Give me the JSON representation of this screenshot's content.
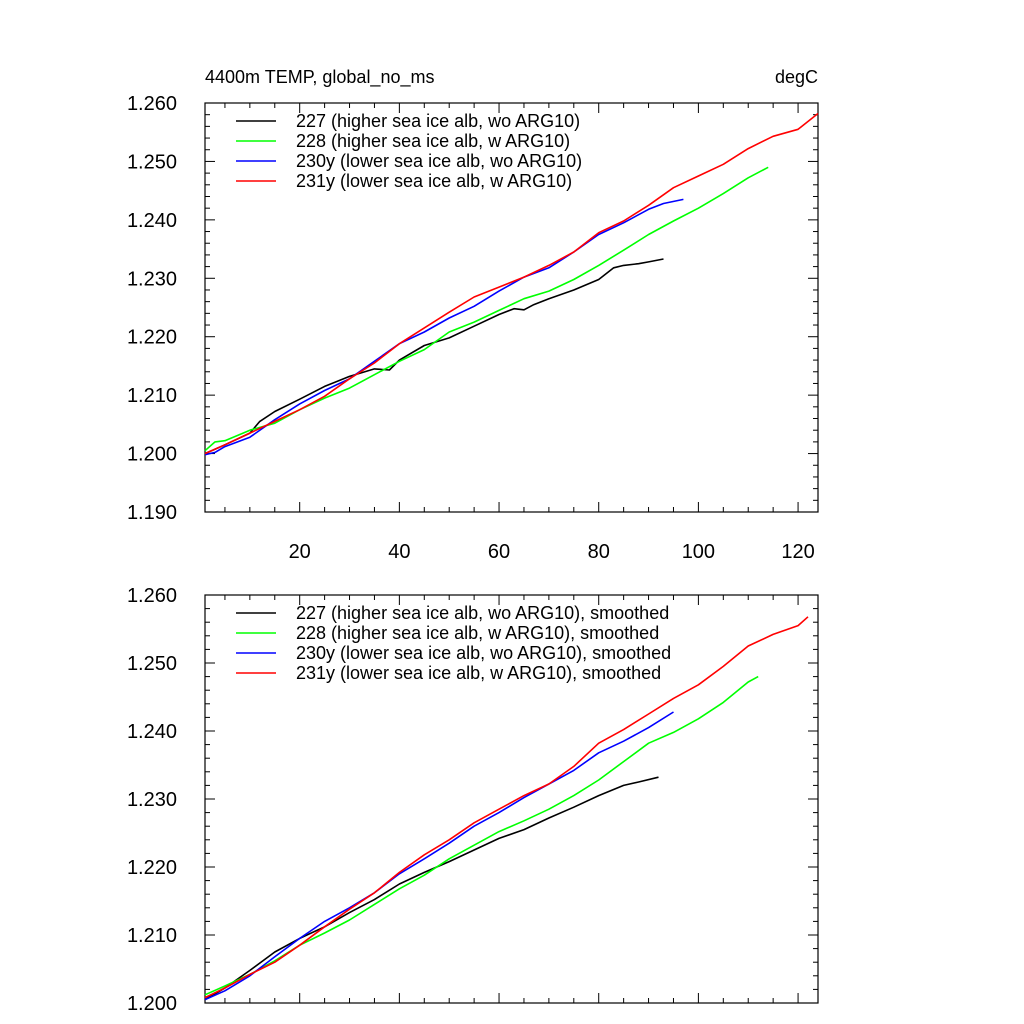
{
  "chart_data": [
    {
      "type": "line",
      "title_left": "4400m TEMP, global_no_ms",
      "title_right": "degC",
      "xlabel": "",
      "ylabel": "",
      "xlim": [
        1,
        124
      ],
      "ylim": [
        1.19,
        1.26
      ],
      "xticks": [
        20,
        40,
        60,
        80,
        100,
        120
      ],
      "yticks": [
        1.19,
        1.2,
        1.21,
        1.22,
        1.23,
        1.24,
        1.25,
        1.26
      ],
      "ytick_labels": [
        "1.190",
        "1.200",
        "1.210",
        "1.220",
        "1.230",
        "1.240",
        "1.250",
        "1.260"
      ],
      "xtick_labels": [
        "20",
        "40",
        "60",
        "80",
        "100",
        "120"
      ],
      "legend_position": "top-left",
      "grid": false,
      "series": [
        {
          "name": "227 (higher sea ice alb, wo ARG10)",
          "color": "#000000",
          "x": [
            1,
            5,
            10,
            12,
            15,
            20,
            25,
            30,
            35,
            38,
            40,
            45,
            50,
            55,
            60,
            63,
            65,
            67,
            70,
            75,
            80,
            83,
            85,
            88,
            90,
            93
          ],
          "y": [
            1.2,
            1.2015,
            1.2035,
            1.2055,
            1.2072,
            1.2093,
            1.2115,
            1.2132,
            1.2145,
            1.2143,
            1.216,
            1.2185,
            1.2198,
            1.2218,
            1.2238,
            1.2248,
            1.2246,
            1.2255,
            1.2265,
            1.228,
            1.2298,
            1.2318,
            1.2322,
            1.2325,
            1.2328,
            1.2333
          ]
        },
        {
          "name": "228 (higher sea ice alb, w ARG10)",
          "color": "#00ff00",
          "x": [
            1,
            3,
            5,
            10,
            15,
            20,
            25,
            30,
            35,
            40,
            45,
            50,
            55,
            60,
            65,
            70,
            75,
            80,
            85,
            90,
            95,
            100,
            105,
            110,
            114
          ],
          "y": [
            1.2005,
            1.202,
            1.2022,
            1.204,
            1.2052,
            1.2075,
            1.2095,
            1.2112,
            1.2135,
            1.2158,
            1.2178,
            1.2208,
            1.2225,
            1.2245,
            1.2265,
            1.2278,
            1.2298,
            1.2322,
            1.2348,
            1.2375,
            1.2398,
            1.242,
            1.2445,
            1.2472,
            1.249
          ]
        },
        {
          "name": "230y (lower sea ice alb, wo ARG10)",
          "color": "#0000ff",
          "x": [
            1,
            3,
            5,
            10,
            15,
            20,
            25,
            30,
            35,
            40,
            45,
            50,
            55,
            60,
            65,
            70,
            75,
            80,
            85,
            90,
            93,
            97
          ],
          "y": [
            1.1998,
            1.2002,
            1.2012,
            1.2028,
            1.2058,
            1.2085,
            1.2108,
            1.2128,
            1.2158,
            1.2188,
            1.2208,
            1.2232,
            1.2252,
            1.2278,
            1.2302,
            1.2318,
            1.2345,
            1.2375,
            1.2395,
            1.2418,
            1.2428,
            1.2435
          ]
        },
        {
          "name": "231y (lower sea ice alb, w ARG10)",
          "color": "#ff0000",
          "x": [
            1,
            5,
            10,
            15,
            20,
            25,
            30,
            35,
            40,
            45,
            50,
            55,
            60,
            65,
            70,
            75,
            80,
            85,
            90,
            95,
            100,
            105,
            110,
            115,
            120,
            124
          ],
          "y": [
            1.2,
            1.2015,
            1.2035,
            1.2055,
            1.2075,
            1.2098,
            1.2128,
            1.2155,
            1.2188,
            1.2215,
            1.2242,
            1.2268,
            1.2285,
            1.2302,
            1.2322,
            1.2345,
            1.2378,
            1.2398,
            1.2425,
            1.2455,
            1.2475,
            1.2495,
            1.2522,
            1.2543,
            1.2555,
            1.2582
          ]
        }
      ]
    },
    {
      "type": "line",
      "xlabel": "",
      "ylabel": "",
      "xlim": [
        1,
        124
      ],
      "ylim": [
        1.2,
        1.26
      ],
      "xticks": [
        20,
        40,
        60,
        80,
        100,
        120
      ],
      "yticks": [
        1.2,
        1.21,
        1.22,
        1.23,
        1.24,
        1.25,
        1.26
      ],
      "ytick_labels": [
        "1.200",
        "1.210",
        "1.220",
        "1.230",
        "1.240",
        "1.250",
        "1.260"
      ],
      "legend_position": "top-left",
      "grid": false,
      "series": [
        {
          "name": "227 (higher sea ice alb, wo ARG10), smoothed",
          "color": "#000000",
          "x": [
            1,
            5,
            10,
            15,
            20,
            25,
            30,
            35,
            40,
            45,
            50,
            55,
            60,
            65,
            70,
            75,
            80,
            85,
            88,
            92
          ],
          "y": [
            1.2005,
            1.2022,
            1.2048,
            1.2075,
            1.2095,
            1.2112,
            1.2133,
            1.2152,
            1.2175,
            1.2192,
            1.2208,
            1.2225,
            1.2242,
            1.2255,
            1.2272,
            1.2288,
            1.2305,
            1.232,
            1.2325,
            1.2332
          ]
        },
        {
          "name": "228 (higher sea ice alb, w ARG10), smoothed",
          "color": "#00ff00",
          "x": [
            1,
            5,
            10,
            15,
            20,
            25,
            30,
            35,
            40,
            45,
            50,
            55,
            60,
            65,
            70,
            75,
            80,
            85,
            90,
            95,
            100,
            105,
            110,
            112
          ],
          "y": [
            1.2012,
            1.2025,
            1.2042,
            1.2062,
            1.2085,
            1.2103,
            1.2122,
            1.2145,
            1.2168,
            1.2188,
            1.2212,
            1.2232,
            1.2252,
            1.2268,
            1.2285,
            1.2305,
            1.2328,
            1.2355,
            1.2382,
            1.2398,
            1.2418,
            1.2442,
            1.2472,
            1.248
          ]
        },
        {
          "name": "230y (lower sea ice alb, wo ARG10), smoothed",
          "color": "#0000ff",
          "x": [
            1,
            5,
            10,
            15,
            20,
            25,
            30,
            35,
            40,
            45,
            50,
            55,
            60,
            65,
            70,
            75,
            80,
            85,
            90,
            95
          ],
          "y": [
            1.2005,
            1.2018,
            1.204,
            1.2068,
            1.2095,
            1.212,
            1.214,
            1.2162,
            1.219,
            1.2212,
            1.2235,
            1.226,
            1.228,
            1.2302,
            1.2322,
            1.2342,
            1.2368,
            1.2385,
            1.2405,
            1.2428
          ]
        },
        {
          "name": "231y (lower sea ice alb, w ARG10), smoothed",
          "color": "#ff0000",
          "x": [
            1,
            5,
            10,
            15,
            20,
            25,
            30,
            35,
            40,
            45,
            50,
            55,
            60,
            65,
            70,
            75,
            80,
            85,
            90,
            95,
            100,
            105,
            110,
            115,
            120,
            122
          ],
          "y": [
            1.2008,
            1.2022,
            1.2042,
            1.206,
            1.2085,
            1.2112,
            1.2138,
            1.2162,
            1.2192,
            1.2218,
            1.224,
            1.2265,
            1.2285,
            1.2305,
            1.2322,
            1.2348,
            1.2382,
            1.2402,
            1.2425,
            1.2448,
            1.2468,
            1.2495,
            1.2525,
            1.2542,
            1.2555,
            1.2568
          ]
        }
      ]
    }
  ]
}
